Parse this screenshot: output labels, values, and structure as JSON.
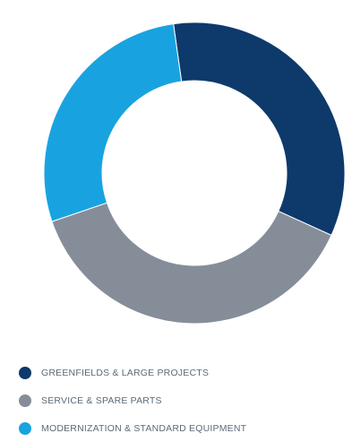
{
  "chart_data": {
    "type": "pie",
    "donut": true,
    "categories": [
      "GREENFIELDS & LARGE PROJECTS",
      "SERVICE & SPARE PARTS",
      "MODERNIZATION & STANDARD EQUIPMENT"
    ],
    "values": [
      34,
      38,
      28
    ],
    "colors": [
      "#0d3a6b",
      "#858e98",
      "#18a3e0"
    ],
    "legend_position": "bottom-left"
  },
  "legend": {
    "items": [
      {
        "label": "GREENFIELDS & LARGE PROJECTS",
        "color": "#0d3a6b"
      },
      {
        "label": "SERVICE & SPARE PARTS",
        "color": "#858e98"
      },
      {
        "label": "MODERNIZATION & STANDARD EQUIPMENT",
        "color": "#18a3e0"
      }
    ]
  }
}
